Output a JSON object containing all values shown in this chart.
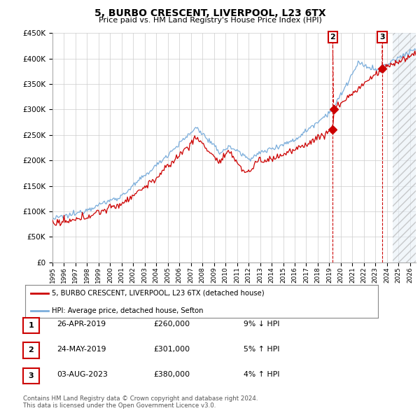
{
  "title": "5, BURBO CRESCENT, LIVERPOOL, L23 6TX",
  "subtitle": "Price paid vs. HM Land Registry's House Price Index (HPI)",
  "ylim": [
    0,
    450000
  ],
  "yticks": [
    0,
    50000,
    100000,
    150000,
    200000,
    250000,
    300000,
    350000,
    400000,
    450000
  ],
  "sale_dates_year": [
    1995.0,
    2019.292,
    2019.375,
    2023.583
  ],
  "sale_prices": [
    75000,
    260000,
    301000,
    380000
  ],
  "sale_labels": [
    "",
    "1",
    "2",
    "3"
  ],
  "legend_house_label": "5, BURBO CRESCENT, LIVERPOOL, L23 6TX (detached house)",
  "legend_hpi_label": "HPI: Average price, detached house, Sefton",
  "house_color": "#cc0000",
  "hpi_color": "#7aaddb",
  "grid_color": "#cccccc",
  "background_color": "#ffffff",
  "table_rows": [
    {
      "num": "1",
      "date": "26-APR-2019",
      "price": "£260,000",
      "hpi": "9% ↓ HPI"
    },
    {
      "num": "2",
      "date": "24-MAY-2019",
      "price": "£301,000",
      "hpi": "5% ↑ HPI"
    },
    {
      "num": "3",
      "date": "03-AUG-2023",
      "price": "£380,000",
      "hpi": "4% ↑ HPI"
    }
  ],
  "footer": "Contains HM Land Registry data © Crown copyright and database right 2024.\nThis data is licensed under the Open Government Licence v3.0.",
  "dashed_line_color": "#cc0000",
  "hatch_start": 2024.5,
  "xlim_start": 1995.0,
  "xlim_end": 2026.5
}
